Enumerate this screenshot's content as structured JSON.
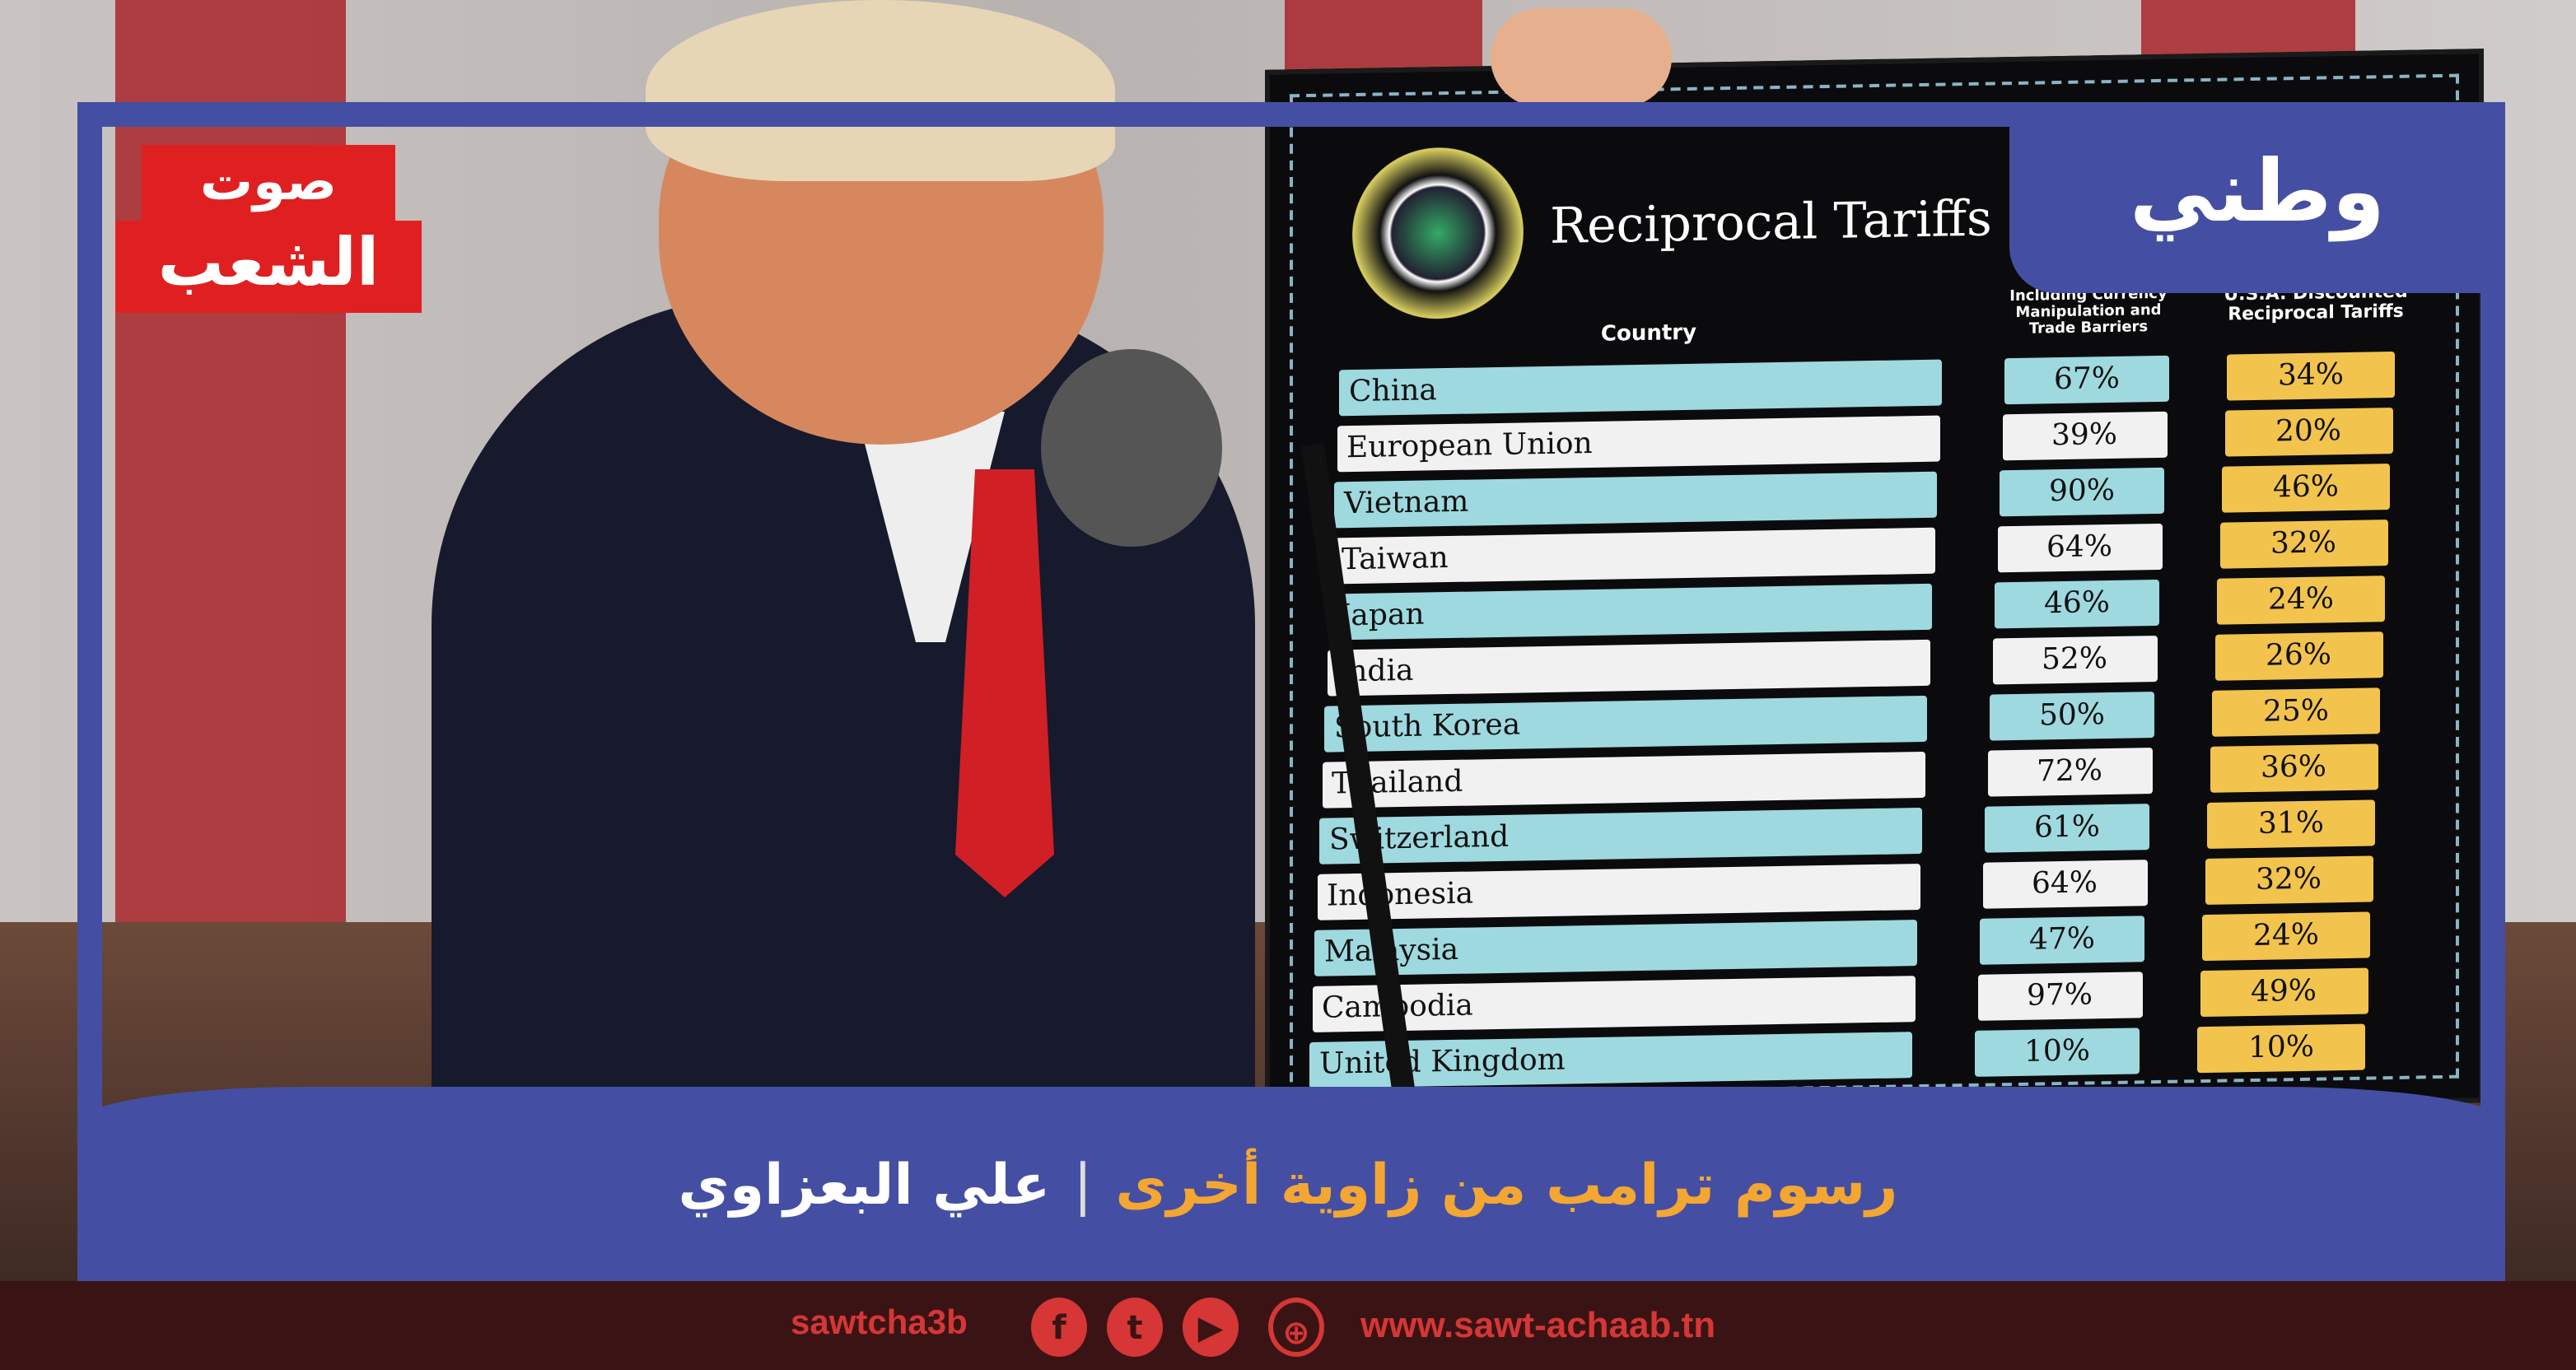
{
  "tab_label": "وطني",
  "logo_text": {
    "line1": "صوت",
    "line2": "الشعب"
  },
  "headline": {
    "title": "رسوم ترامب من زاوية أخرى",
    "author": "علي البعزاوي",
    "separator": "|",
    "title_color": "#f4a633"
  },
  "board": {
    "title": "Reciprocal Tariffs",
    "header_country": "Country",
    "header_mid": "Including Currency Manipulation and Trade Barriers",
    "header_right": "U.S.A. Discounted Reciprocal Tariffs",
    "rows": [
      {
        "country": "China",
        "mid": "67%",
        "right": "34%"
      },
      {
        "country": "European Union",
        "mid": "39%",
        "right": "20%"
      },
      {
        "country": "Vietnam",
        "mid": "90%",
        "right": "46%"
      },
      {
        "country": "Taiwan",
        "mid": "64%",
        "right": "32%"
      },
      {
        "country": "Japan",
        "mid": "46%",
        "right": "24%"
      },
      {
        "country": "India",
        "mid": "52%",
        "right": "26%"
      },
      {
        "country": "South Korea",
        "mid": "50%",
        "right": "25%"
      },
      {
        "country": "Thailand",
        "mid": "72%",
        "right": "36%"
      },
      {
        "country": "Switzerland",
        "mid": "61%",
        "right": "31%"
      },
      {
        "country": "Indonesia",
        "mid": "64%",
        "right": "32%"
      },
      {
        "country": "Malaysia",
        "mid": "47%",
        "right": "24%"
      },
      {
        "country": "Cambodia",
        "mid": "97%",
        "right": "49%"
      },
      {
        "country": "United Kingdom",
        "mid": "10%",
        "right": "10%"
      }
    ]
  },
  "footer": {
    "handle": "sawtcha3b",
    "url": "www.sawt-achaab.tn",
    "icons": [
      "facebook-icon",
      "twitter-icon",
      "youtube-icon",
      "globe-icon"
    ]
  },
  "colors": {
    "frame": "#444fa3",
    "footer_text": "#d63636",
    "logo": "#e02020"
  }
}
